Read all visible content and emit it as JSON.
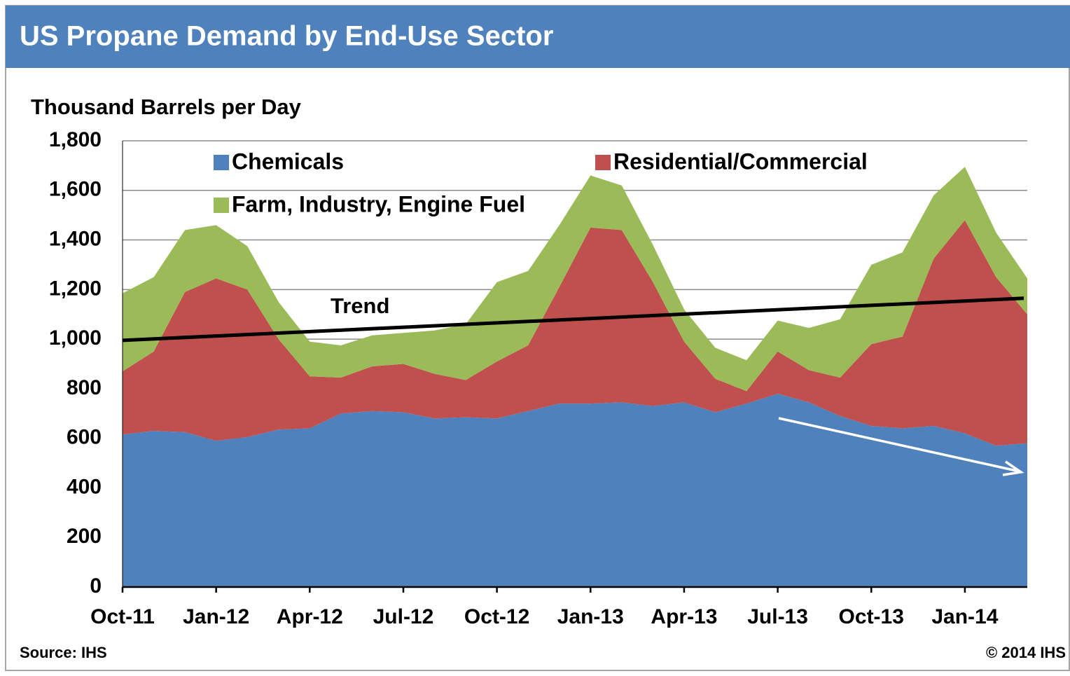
{
  "chart_data": {
    "type": "stacked_area",
    "title": "US Propane Demand by End-Use Sector",
    "y_axis_label": "Thousand Barrels per Day",
    "source": "Source: IHS",
    "copyright": "© 2014 IHS",
    "categories": [
      "Oct-11",
      null,
      null,
      "Jan-12",
      null,
      null,
      "Apr-12",
      null,
      null,
      "Jul-12",
      null,
      null,
      "Oct-12",
      null,
      null,
      "Jan-13",
      null,
      null,
      "Apr-13",
      null,
      null,
      "Jul-13",
      null,
      null,
      "Oct-13",
      null,
      null,
      "Jan-14",
      null,
      null
    ],
    "series": [
      {
        "name": "Chemicals",
        "color": "#4f81bd",
        "values": [
          615,
          630,
          625,
          590,
          605,
          635,
          640,
          700,
          710,
          705,
          680,
          685,
          680,
          710,
          740,
          740,
          745,
          730,
          745,
          705,
          740,
          780,
          745,
          690,
          650,
          640,
          650,
          620,
          570,
          580
        ]
      },
      {
        "name": "Residential/Commercial",
        "color": "#c0504d",
        "values": [
          255,
          320,
          565,
          655,
          595,
          365,
          210,
          145,
          180,
          195,
          180,
          150,
          230,
          265,
          470,
          710,
          695,
          500,
          245,
          135,
          50,
          170,
          130,
          155,
          330,
          370,
          675,
          860,
          680,
          520
        ]
      },
      {
        "name": "Farm, Industry, Engine Fuel",
        "color": "#9bbb59",
        "values": [
          315,
          300,
          250,
          215,
          175,
          150,
          140,
          130,
          125,
          125,
          175,
          225,
          320,
          300,
          250,
          210,
          180,
          150,
          130,
          125,
          125,
          125,
          170,
          235,
          320,
          340,
          255,
          215,
          180,
          145
        ]
      }
    ],
    "trend": {
      "label": "Trend",
      "start": 995,
      "end": 1165,
      "color": "#000000"
    },
    "ylim": [
      0,
      1800
    ],
    "yticks": [
      0,
      200,
      400,
      600,
      800,
      {
        "value": 1000,
        "label": "1,000"
      },
      {
        "value": 1200,
        "label": "1,200"
      },
      {
        "value": 1400,
        "label": "1,400"
      },
      {
        "value": 1600,
        "label": "1,600"
      },
      {
        "value": 1800,
        "label": "1,800"
      }
    ],
    "grid": true
  }
}
